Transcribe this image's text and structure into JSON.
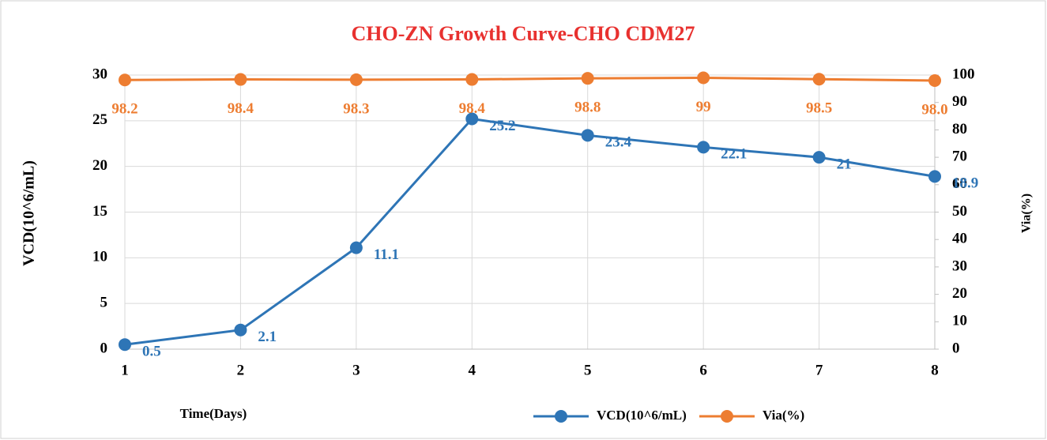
{
  "chart_data": {
    "type": "line",
    "title": "CHO-ZN Growth Curve-CHO CDM27",
    "x_label": "Time(Days)",
    "y_label": "VCD(10^6/mL)",
    "y2_label": "Via(%)",
    "x": [
      1,
      2,
      3,
      4,
      5,
      6,
      7,
      8
    ],
    "xlim": [
      1,
      8
    ],
    "xticks": [
      1,
      2,
      3,
      4,
      5,
      6,
      7,
      8
    ],
    "ylim": [
      0,
      30
    ],
    "yticks": [
      0,
      5,
      10,
      15,
      20,
      25,
      30
    ],
    "y2lim": [
      0,
      100
    ],
    "y2ticks": [
      0,
      10,
      20,
      30,
      40,
      50,
      60,
      70,
      80,
      90,
      100
    ],
    "grid": true,
    "legend": "bottom",
    "series": [
      {
        "name": "VCD(10^6/mL)",
        "color": "#2e75b6",
        "values": [
          0.5,
          2.1,
          11.1,
          25.2,
          23.4,
          22.1,
          21,
          18.9
        ]
      },
      {
        "name": "Via(%)",
        "color": "#ed7d31",
        "axis": "y2",
        "values": [
          98.2,
          98.4,
          98.3,
          98.4,
          98.8,
          99,
          98.5,
          98.0
        ],
        "value_labels": [
          "98.2",
          "98.4",
          "98.3",
          "98.4",
          "98.8",
          "99",
          "98.5",
          "98.0"
        ]
      }
    ]
  }
}
